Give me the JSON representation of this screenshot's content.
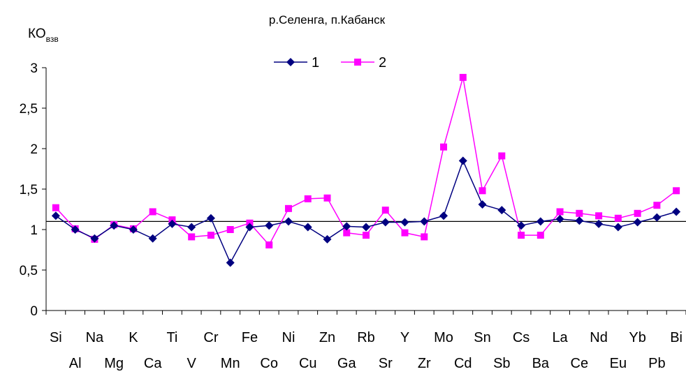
{
  "chart_data": {
    "type": "line",
    "title": "р.Селенга, п.Кабанск",
    "ylabel": "КО",
    "ylabel_subscript": "взв",
    "xlabel": "",
    "ylim": [
      0,
      3
    ],
    "yticks": [
      "0",
      "0,5",
      "1",
      "1,5",
      "2",
      "2,5",
      "3"
    ],
    "reference_line": 1.1,
    "legend_position": "top-center",
    "categories": [
      "Si",
      "Al",
      "Na",
      "Mg",
      "K",
      "Ca",
      "Ti",
      "V",
      "Cr",
      "Mn",
      "Fe",
      "Co",
      "Ni",
      "Cu",
      "Zn",
      "Ga",
      "Rb",
      "Sr",
      "Y",
      "Zr",
      "Mo",
      "Cd",
      "Sn",
      "Sb",
      "Cs",
      "Ba",
      "La",
      "Ce",
      "Nd",
      "Eu",
      "Yb",
      "Pb",
      "Bi"
    ],
    "series": [
      {
        "name": "1",
        "color": "#000080",
        "marker": "diamond",
        "values": [
          1.17,
          1.0,
          0.89,
          1.05,
          1.0,
          0.89,
          1.07,
          1.03,
          1.14,
          0.59,
          1.03,
          1.05,
          1.1,
          1.03,
          0.88,
          1.04,
          1.03,
          1.09,
          1.09,
          1.1,
          1.17,
          1.85,
          1.31,
          1.24,
          1.05,
          1.1,
          1.13,
          1.11,
          1.07,
          1.03,
          1.09,
          1.15,
          1.22
        ]
      },
      {
        "name": "2",
        "color": "#ff00ff",
        "marker": "square",
        "values": [
          1.27,
          1.01,
          0.88,
          1.06,
          1.01,
          1.22,
          1.12,
          0.91,
          0.93,
          1.0,
          1.08,
          0.81,
          1.26,
          1.38,
          1.39,
          0.96,
          0.93,
          1.24,
          0.96,
          0.91,
          2.02,
          2.88,
          1.48,
          1.91,
          0.93,
          0.93,
          1.22,
          1.2,
          1.17,
          1.14,
          1.2,
          1.3,
          1.48
        ]
      }
    ]
  }
}
